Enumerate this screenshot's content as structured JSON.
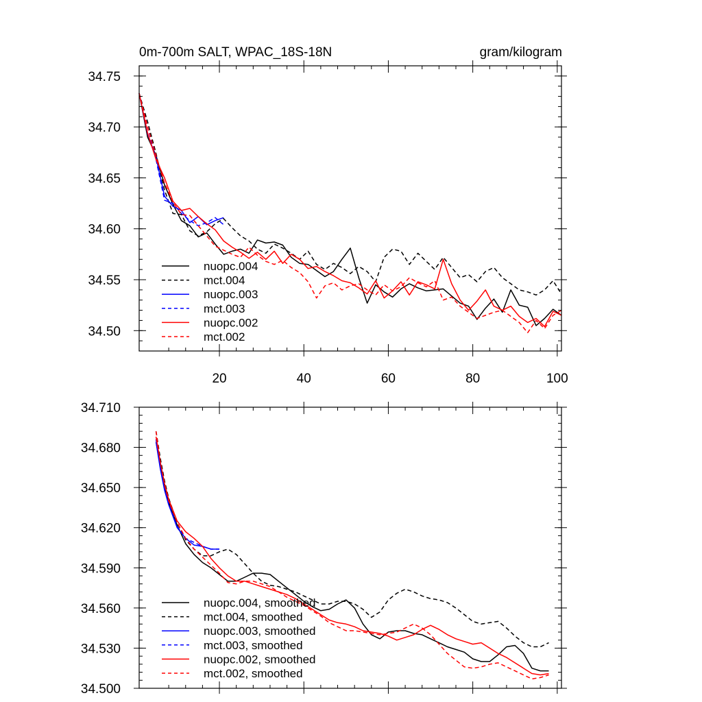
{
  "chart_data": [
    {
      "type": "line",
      "title": "0m-700m SALT, WPAC_18S-18N",
      "units": "gram/kilogram",
      "xlim": [
        1,
        101
      ],
      "ylim": [
        34.48,
        34.76
      ],
      "xticks": [
        20,
        40,
        60,
        80,
        100
      ],
      "yticks": [
        34.5,
        34.55,
        34.6,
        34.65,
        34.7,
        34.75
      ],
      "ytick_labels": [
        "34.50",
        "34.55",
        "34.60",
        "34.65",
        "34.70",
        "34.75"
      ],
      "legend_position": "bottom-left",
      "series": [
        {
          "name": "nuopc.004",
          "color": "#000000",
          "dash": "solid",
          "x": [
            1,
            3,
            5,
            7,
            9,
            11,
            13,
            15,
            17,
            19,
            21,
            23,
            25,
            27,
            29,
            31,
            33,
            35,
            37,
            39,
            41,
            43,
            45,
            47,
            49,
            51,
            53,
            55,
            57,
            59,
            61,
            63,
            65,
            67,
            69,
            71,
            73,
            75,
            77,
            79,
            81,
            83,
            85,
            87,
            89,
            91,
            93,
            95,
            97,
            99,
            101
          ],
          "values": [
            34.733,
            34.69,
            34.672,
            34.643,
            34.624,
            34.608,
            34.603,
            34.592,
            34.596,
            34.585,
            34.575,
            34.578,
            34.58,
            34.576,
            34.589,
            34.586,
            34.587,
            34.584,
            34.572,
            34.566,
            34.565,
            34.559,
            34.553,
            34.558,
            34.57,
            34.581,
            34.552,
            34.527,
            34.545,
            34.538,
            34.533,
            34.541,
            34.546,
            34.542,
            34.539,
            34.54,
            34.541,
            34.534,
            34.527,
            34.524,
            34.511,
            34.522,
            34.531,
            34.518,
            34.54,
            34.525,
            34.523,
            34.505,
            34.512,
            34.521,
            34.515
          ]
        },
        {
          "name": "mct.004",
          "color": "#000000",
          "dash": "dashed",
          "x": [
            1,
            3,
            5,
            7,
            9,
            11,
            13,
            15,
            17,
            19,
            21,
            23,
            25,
            27,
            29,
            31,
            33,
            35,
            37,
            39,
            41,
            43,
            45,
            47,
            49,
            51,
            53,
            55,
            57,
            59,
            61,
            63,
            65,
            67,
            69,
            71,
            73,
            75,
            77,
            79,
            81,
            83,
            85,
            87,
            89,
            91,
            93,
            95,
            97,
            99,
            101
          ],
          "values": [
            34.733,
            34.705,
            34.674,
            34.638,
            34.615,
            34.614,
            34.598,
            34.593,
            34.597,
            34.605,
            34.61,
            34.601,
            34.593,
            34.588,
            34.58,
            34.576,
            34.585,
            34.581,
            34.576,
            34.57,
            34.578,
            34.565,
            34.56,
            34.566,
            34.562,
            34.556,
            34.563,
            34.558,
            34.548,
            34.572,
            34.58,
            34.578,
            34.565,
            34.576,
            34.568,
            34.56,
            34.572,
            34.562,
            34.552,
            34.555,
            34.548,
            34.558,
            34.562,
            34.552,
            34.546,
            34.54,
            34.538,
            34.535,
            34.54,
            34.549,
            34.536
          ]
        },
        {
          "name": "nuopc.003",
          "color": "#0000ff",
          "dash": "solid",
          "x": [
            1,
            3,
            5,
            7,
            9,
            11,
            13,
            15,
            17,
            19,
            21
          ],
          "values": [
            34.733,
            34.693,
            34.67,
            34.632,
            34.622,
            34.618,
            34.606,
            34.612,
            34.604,
            34.608,
            34.611
          ]
        },
        {
          "name": "mct.003",
          "color": "#0000ff",
          "dash": "dashed",
          "x": [
            1,
            3,
            5,
            7,
            9,
            11,
            13,
            15,
            17,
            19,
            21
          ],
          "values": [
            34.733,
            34.7,
            34.668,
            34.628,
            34.625,
            34.615,
            34.608,
            34.603,
            34.606,
            34.611,
            34.604
          ]
        },
        {
          "name": "nuopc.002",
          "color": "#ff0000",
          "dash": "solid",
          "x": [
            1,
            3,
            5,
            7,
            9,
            11,
            13,
            15,
            17,
            19,
            21,
            23,
            25,
            27,
            29,
            31,
            33,
            35,
            37,
            39,
            41,
            43,
            45,
            47,
            49,
            51,
            53,
            55,
            57,
            59,
            61,
            63,
            65,
            67,
            69,
            71,
            73,
            75,
            77,
            79,
            81,
            83,
            85,
            87,
            89,
            91,
            93,
            95,
            97,
            99,
            101
          ],
          "values": [
            34.733,
            34.694,
            34.668,
            34.65,
            34.627,
            34.618,
            34.62,
            34.612,
            34.605,
            34.599,
            34.588,
            34.582,
            34.577,
            34.571,
            34.577,
            34.57,
            34.578,
            34.566,
            34.575,
            34.57,
            34.561,
            34.563,
            34.558,
            34.554,
            34.549,
            34.547,
            34.542,
            34.536,
            34.549,
            34.532,
            34.539,
            34.548,
            34.535,
            34.548,
            34.545,
            34.541,
            34.57,
            34.546,
            34.53,
            34.52,
            34.529,
            34.54,
            34.524,
            34.52,
            34.524,
            34.514,
            34.508,
            34.512,
            34.504,
            34.519,
            34.515
          ]
        },
        {
          "name": "mct.002",
          "color": "#ff0000",
          "dash": "dashed",
          "x": [
            1,
            3,
            5,
            7,
            9,
            11,
            13,
            15,
            17,
            19,
            21,
            23,
            25,
            27,
            29,
            31,
            33,
            35,
            37,
            39,
            41,
            43,
            45,
            47,
            49,
            51,
            53,
            55,
            57,
            59,
            61,
            63,
            65,
            67,
            69,
            71,
            73,
            75,
            77,
            79,
            81,
            83,
            85,
            87,
            89,
            91,
            93,
            95,
            97,
            99,
            101
          ],
          "values": [
            34.733,
            34.7,
            34.672,
            34.645,
            34.626,
            34.614,
            34.613,
            34.603,
            34.593,
            34.583,
            34.579,
            34.575,
            34.572,
            34.582,
            34.574,
            34.568,
            34.565,
            34.569,
            34.562,
            34.557,
            34.548,
            34.532,
            34.544,
            34.547,
            34.54,
            34.544,
            34.546,
            34.54,
            34.535,
            34.545,
            34.539,
            34.543,
            34.552,
            34.547,
            34.543,
            34.549,
            34.53,
            34.533,
            34.524,
            34.518,
            34.512,
            34.515,
            34.518,
            34.52,
            34.514,
            34.508,
            34.498,
            34.51,
            34.502,
            34.515,
            34.52
          ]
        }
      ]
    },
    {
      "type": "line",
      "title": "",
      "xlim": [
        1,
        101
      ],
      "ylim": [
        34.5,
        34.71
      ],
      "yticks": [
        34.5,
        34.53,
        34.56,
        34.59,
        34.62,
        34.65,
        34.68,
        34.71
      ],
      "ytick_labels": [
        "34.500",
        "34.530",
        "34.560",
        "34.590",
        "34.620",
        "34.650",
        "34.680",
        "34.710"
      ],
      "legend_position": "bottom-left",
      "series": [
        {
          "name": "nuopc.004, smoothed",
          "color": "#000000",
          "dash": "solid",
          "x": [
            5,
            6,
            7,
            8,
            10,
            12,
            14,
            16,
            18,
            20,
            22,
            24,
            26,
            28,
            30,
            32,
            34,
            36,
            38,
            40,
            42,
            44,
            46,
            48,
            50,
            52,
            54,
            56,
            58,
            60,
            62,
            64,
            66,
            68,
            70,
            72,
            74,
            76,
            78,
            80,
            82,
            84,
            86,
            88,
            90,
            92,
            94,
            96,
            98
          ],
          "values": [
            34.684,
            34.666,
            34.651,
            34.639,
            34.622,
            34.608,
            34.6,
            34.594,
            34.59,
            34.585,
            34.58,
            34.58,
            34.583,
            34.586,
            34.586,
            34.585,
            34.58,
            34.575,
            34.57,
            34.565,
            34.561,
            34.558,
            34.559,
            34.563,
            34.566,
            34.56,
            34.548,
            34.54,
            34.537,
            34.542,
            34.543,
            34.543,
            34.541,
            34.54,
            34.537,
            34.534,
            34.531,
            34.529,
            34.527,
            34.522,
            34.52,
            34.52,
            34.525,
            34.531,
            34.532,
            34.526,
            34.515,
            34.513,
            34.513
          ]
        },
        {
          "name": "mct.004, smoothed",
          "color": "#000000",
          "dash": "dashed",
          "x": [
            5,
            6,
            7,
            8,
            10,
            12,
            14,
            16,
            18,
            20,
            22,
            24,
            26,
            28,
            30,
            32,
            34,
            36,
            38,
            40,
            42,
            44,
            46,
            48,
            50,
            52,
            54,
            56,
            58,
            60,
            62,
            64,
            66,
            68,
            70,
            72,
            74,
            76,
            78,
            80,
            82,
            84,
            86,
            88,
            90,
            92,
            94,
            96,
            98
          ],
          "values": [
            34.692,
            34.672,
            34.655,
            34.642,
            34.624,
            34.611,
            34.604,
            34.599,
            34.599,
            34.602,
            34.604,
            34.6,
            34.593,
            34.586,
            34.58,
            34.577,
            34.576,
            34.574,
            34.572,
            34.569,
            34.566,
            34.563,
            34.563,
            34.565,
            34.565,
            34.563,
            34.559,
            34.553,
            34.557,
            34.566,
            34.571,
            34.574,
            34.572,
            34.569,
            34.567,
            34.566,
            34.564,
            34.56,
            34.555,
            34.55,
            34.548,
            34.549,
            34.55,
            34.545,
            34.539,
            34.534,
            34.531,
            34.531,
            34.534
          ]
        },
        {
          "name": "nuopc.003, smoothed",
          "color": "#0000ff",
          "dash": "solid",
          "x": [
            5,
            6,
            7,
            8,
            10,
            12,
            14,
            16,
            18,
            20
          ],
          "values": [
            34.684,
            34.664,
            34.648,
            34.637,
            34.62,
            34.612,
            34.607,
            34.606,
            34.604,
            34.604
          ]
        },
        {
          "name": "mct.003, smoothed",
          "color": "#0000ff",
          "dash": "dashed",
          "x": [
            5,
            6,
            7,
            8,
            10,
            12,
            14,
            16,
            18,
            20
          ],
          "values": [
            34.686,
            34.666,
            34.65,
            34.638,
            34.621,
            34.612,
            34.609,
            34.606,
            34.604,
            34.604
          ]
        },
        {
          "name": "nuopc.002, smoothed",
          "color": "#ff0000",
          "dash": "solid",
          "x": [
            5,
            6,
            7,
            8,
            10,
            12,
            14,
            16,
            18,
            20,
            22,
            24,
            26,
            28,
            30,
            32,
            34,
            36,
            38,
            40,
            42,
            44,
            46,
            48,
            50,
            52,
            54,
            56,
            58,
            60,
            62,
            64,
            66,
            68,
            70,
            72,
            74,
            76,
            78,
            80,
            82,
            84,
            86,
            88,
            90,
            92,
            94,
            96,
            98
          ],
          "values": [
            34.688,
            34.669,
            34.653,
            34.641,
            34.625,
            34.617,
            34.612,
            34.606,
            34.597,
            34.59,
            34.584,
            34.58,
            34.58,
            34.578,
            34.576,
            34.574,
            34.572,
            34.57,
            34.567,
            34.563,
            34.559,
            34.555,
            34.551,
            34.549,
            34.548,
            34.546,
            34.543,
            34.542,
            34.541,
            34.539,
            34.536,
            34.538,
            34.54,
            34.544,
            34.547,
            34.544,
            34.54,
            34.537,
            34.535,
            34.533,
            34.534,
            34.53,
            34.526,
            34.523,
            34.519,
            34.515,
            34.511,
            34.51,
            34.511
          ]
        },
        {
          "name": "mct.002, smoothed",
          "color": "#ff0000",
          "dash": "dashed",
          "x": [
            5,
            6,
            7,
            8,
            10,
            12,
            14,
            16,
            18,
            20,
            22,
            24,
            26,
            28,
            30,
            32,
            34,
            36,
            38,
            40,
            42,
            44,
            46,
            48,
            50,
            52,
            54,
            56,
            58,
            60,
            62,
            64,
            66,
            68,
            70,
            72,
            74,
            76,
            78,
            80,
            82,
            84,
            86,
            88,
            90,
            92,
            94,
            96,
            98
          ],
          "values": [
            34.692,
            34.669,
            34.652,
            34.64,
            34.624,
            34.612,
            34.604,
            34.598,
            34.592,
            34.586,
            34.579,
            34.578,
            34.58,
            34.58,
            34.578,
            34.576,
            34.572,
            34.568,
            34.565,
            34.562,
            34.558,
            34.554,
            34.549,
            34.546,
            34.543,
            34.543,
            34.542,
            34.541,
            34.54,
            34.541,
            34.542,
            34.545,
            34.548,
            34.545,
            34.54,
            34.533,
            34.526,
            34.521,
            34.516,
            34.515,
            34.516,
            34.518,
            34.519,
            34.516,
            34.513,
            34.51,
            34.507,
            34.508,
            34.51
          ]
        }
      ]
    }
  ]
}
